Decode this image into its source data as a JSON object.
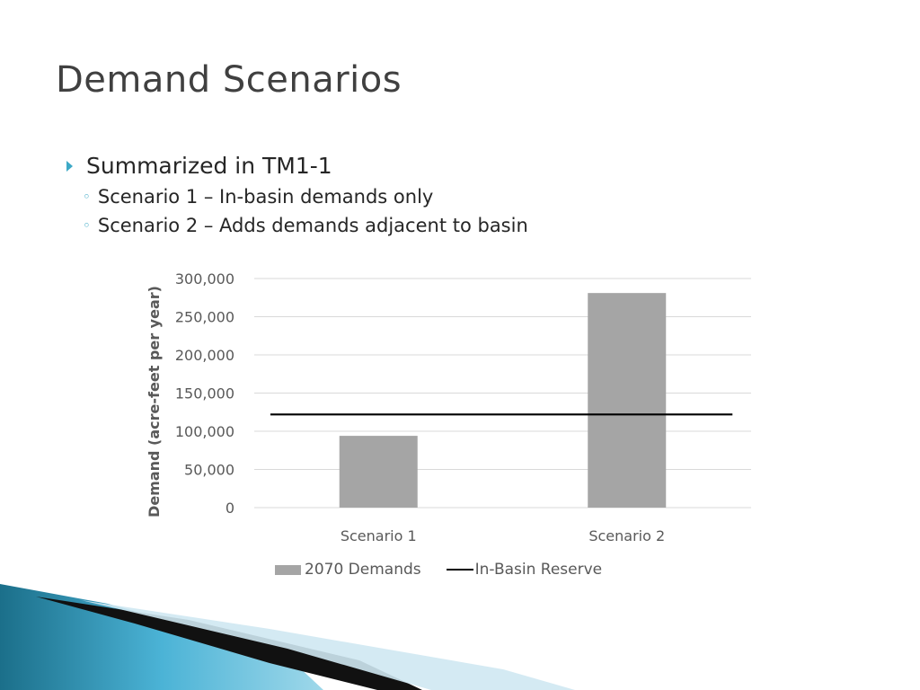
{
  "slide": {
    "title": "Demand Scenarios",
    "bullets": [
      {
        "text": "Summarized in TM1-1",
        "level": 1
      },
      {
        "text": "Scenario 1 – In-basin demands only",
        "level": 2
      },
      {
        "text": "Scenario 2 – Adds demands adjacent to basin",
        "level": 2
      }
    ]
  },
  "colors": {
    "bar": "#a5a5a5",
    "reserve_line": "#000000",
    "accent": "#3da9c6"
  },
  "chart_data": {
    "type": "bar",
    "categories": [
      "Scenario 1",
      "Scenario 2"
    ],
    "series": [
      {
        "name": "2070 Demands",
        "type": "bar",
        "values": [
          94000,
          281000
        ]
      },
      {
        "name": "In-Basin Reserve",
        "type": "line",
        "values": [
          122000,
          122000
        ]
      }
    ],
    "title": "",
    "xlabel": "",
    "ylabel": "Demand (acre-feet per year)",
    "ylim": [
      0,
      300000
    ],
    "yticks": [
      "0",
      "50,000",
      "100,000",
      "150,000",
      "200,000",
      "250,000",
      "300,000"
    ],
    "grid": true,
    "legend": "bottom"
  }
}
